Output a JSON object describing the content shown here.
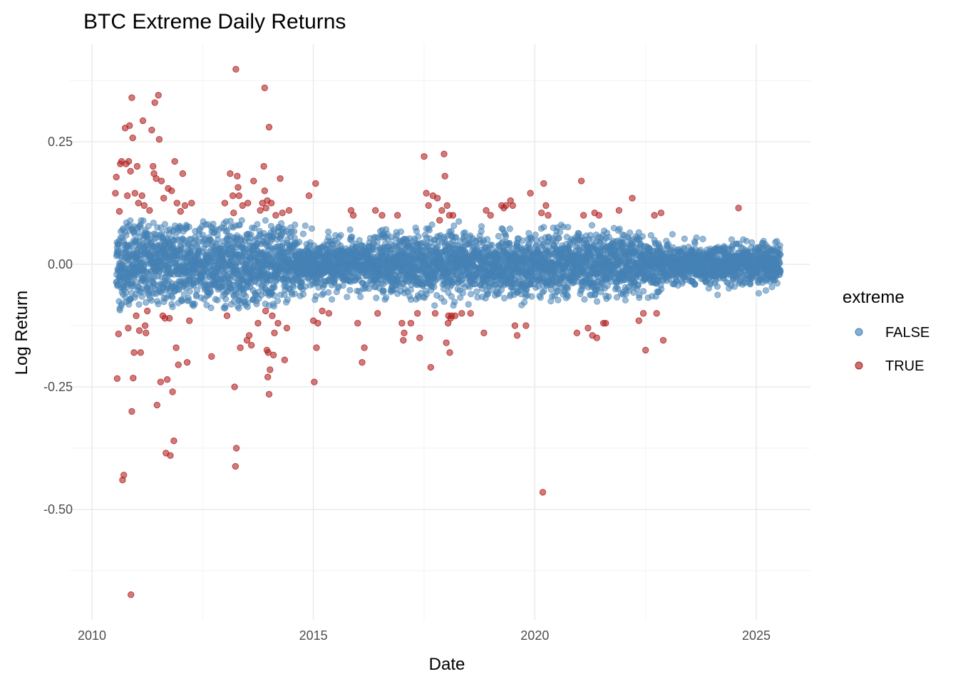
{
  "chart_data": {
    "type": "scatter",
    "title": "BTC Extreme Daily Returns",
    "xlabel": "Date",
    "ylabel": "Log Return",
    "xlim": [
      2010.0,
      2026.25
    ],
    "ylim": [
      -0.72,
      0.43
    ],
    "x_ticks": [
      2010,
      2015,
      2020,
      2025
    ],
    "x_tick_labels": [
      "2010",
      "2015",
      "2020",
      "2025"
    ],
    "y_ticks": [
      -0.5,
      -0.25,
      0.0,
      0.25
    ],
    "y_tick_labels": [
      "-0.50",
      "-0.25",
      "0.00",
      "0.25"
    ],
    "grid": true,
    "legend": {
      "title": "extreme",
      "position": "right"
    },
    "background_points": {
      "description_series": "FALSE",
      "x_range": [
        2010.55,
        2025.55
      ],
      "note": "dense band of non-extreme daily returns"
    },
    "series": [
      {
        "name": "FALSE",
        "color": "#4682B4",
        "envelope": [
          [
            2010.6,
            0.095
          ],
          [
            2011.0,
            0.09
          ],
          [
            2011.5,
            0.095
          ],
          [
            2012.0,
            0.085
          ],
          [
            2012.5,
            0.09
          ],
          [
            2013.0,
            0.09
          ],
          [
            2013.5,
            0.095
          ],
          [
            2014.0,
            0.09
          ],
          [
            2014.5,
            0.08
          ],
          [
            2015.0,
            0.085
          ],
          [
            2015.5,
            0.075
          ],
          [
            2016.0,
            0.07
          ],
          [
            2016.5,
            0.075
          ],
          [
            2017.0,
            0.075
          ],
          [
            2017.5,
            0.08
          ],
          [
            2018.0,
            0.095
          ],
          [
            2018.5,
            0.085
          ],
          [
            2019.0,
            0.08
          ],
          [
            2019.5,
            0.08
          ],
          [
            2020.0,
            0.09
          ],
          [
            2020.5,
            0.08
          ],
          [
            2021.0,
            0.095
          ],
          [
            2021.5,
            0.08
          ],
          [
            2022.0,
            0.075
          ],
          [
            2022.5,
            0.07
          ],
          [
            2023.0,
            0.065
          ],
          [
            2023.5,
            0.065
          ],
          [
            2024.0,
            0.08
          ],
          [
            2024.5,
            0.085
          ],
          [
            2025.0,
            0.09
          ],
          [
            2025.5,
            0.045
          ]
        ]
      },
      {
        "name": "TRUE",
        "color": "#B22222",
        "points": [
          [
            2010.53,
            0.145
          ],
          [
            2010.55,
            0.178
          ],
          [
            2010.57,
            -0.233
          ],
          [
            2010.6,
            -0.142
          ],
          [
            2010.62,
            0.108
          ],
          [
            2010.64,
            0.205
          ],
          [
            2010.67,
            0.21
          ],
          [
            2010.69,
            -0.44
          ],
          [
            2010.72,
            -0.43
          ],
          [
            2010.75,
            0.278
          ],
          [
            2010.77,
            0.205
          ],
          [
            2010.8,
            0.14
          ],
          [
            2010.82,
            -0.13
          ],
          [
            2010.83,
            0.21
          ],
          [
            2010.85,
            0.283
          ],
          [
            2010.87,
            0.19
          ],
          [
            2010.88,
            -0.674
          ],
          [
            2010.9,
            0.34
          ],
          [
            2010.9,
            -0.3
          ],
          [
            2010.92,
            0.258
          ],
          [
            2010.93,
            -0.232
          ],
          [
            2010.95,
            -0.18
          ],
          [
            2010.97,
            0.145
          ],
          [
            2011.0,
            -0.105
          ],
          [
            2011.02,
            0.2
          ],
          [
            2011.05,
            0.125
          ],
          [
            2011.07,
            -0.135
          ],
          [
            2011.1,
            -0.18
          ],
          [
            2011.13,
            0.14
          ],
          [
            2011.15,
            0.293
          ],
          [
            2011.18,
            0.12
          ],
          [
            2011.2,
            -0.125
          ],
          [
            2011.22,
            -0.14
          ],
          [
            2011.25,
            -0.095
          ],
          [
            2011.3,
            0.11
          ],
          [
            2011.35,
            0.274
          ],
          [
            2011.38,
            0.2
          ],
          [
            2011.4,
            0.185
          ],
          [
            2011.42,
            0.33
          ],
          [
            2011.45,
            0.175
          ],
          [
            2011.47,
            -0.287
          ],
          [
            2011.5,
            0.345
          ],
          [
            2011.52,
            0.255
          ],
          [
            2011.55,
            -0.24
          ],
          [
            2011.57,
            0.17
          ],
          [
            2011.6,
            -0.105
          ],
          [
            2011.62,
            0.135
          ],
          [
            2011.65,
            -0.11
          ],
          [
            2011.67,
            -0.385
          ],
          [
            2011.7,
            -0.235
          ],
          [
            2011.72,
            0.155
          ],
          [
            2011.75,
            -0.11
          ],
          [
            2011.77,
            -0.39
          ],
          [
            2011.8,
            0.15
          ],
          [
            2011.82,
            -0.26
          ],
          [
            2011.85,
            -0.36
          ],
          [
            2011.87,
            0.21
          ],
          [
            2011.9,
            -0.17
          ],
          [
            2011.92,
            0.125
          ],
          [
            2011.95,
            -0.205
          ],
          [
            2012.0,
            0.108
          ],
          [
            2012.05,
            0.185
          ],
          [
            2012.1,
            0.12
          ],
          [
            2012.15,
            -0.2
          ],
          [
            2012.2,
            -0.115
          ],
          [
            2012.25,
            0.125
          ],
          [
            2012.7,
            -0.188
          ],
          [
            2013.0,
            0.125
          ],
          [
            2013.05,
            -0.105
          ],
          [
            2013.12,
            0.185
          ],
          [
            2013.18,
            0.14
          ],
          [
            2013.2,
            0.105
          ],
          [
            2013.22,
            -0.25
          ],
          [
            2013.24,
            -0.412
          ],
          [
            2013.25,
            0.398
          ],
          [
            2013.26,
            -0.375
          ],
          [
            2013.28,
            0.18
          ],
          [
            2013.3,
            0.157
          ],
          [
            2013.32,
            0.14
          ],
          [
            2013.35,
            -0.17
          ],
          [
            2013.4,
            0.12
          ],
          [
            2013.5,
            -0.155
          ],
          [
            2013.52,
            0.125
          ],
          [
            2013.55,
            -0.145
          ],
          [
            2013.6,
            -0.165
          ],
          [
            2013.65,
            0.17
          ],
          [
            2013.75,
            -0.12
          ],
          [
            2013.8,
            0.11
          ],
          [
            2013.85,
            0.125
          ],
          [
            2013.88,
            0.2
          ],
          [
            2013.9,
            0.36
          ],
          [
            2013.9,
            0.15
          ],
          [
            2013.92,
            -0.095
          ],
          [
            2013.93,
            0.115
          ],
          [
            2013.95,
            -0.175
          ],
          [
            2013.96,
            0.13
          ],
          [
            2013.97,
            -0.23
          ],
          [
            2013.98,
            -0.18
          ],
          [
            2014.0,
            0.28
          ],
          [
            2014.0,
            -0.265
          ],
          [
            2014.02,
            -0.215
          ],
          [
            2014.05,
            0.125
          ],
          [
            2014.07,
            -0.105
          ],
          [
            2014.1,
            -0.185
          ],
          [
            2014.12,
            -0.14
          ],
          [
            2014.15,
            0.1
          ],
          [
            2014.2,
            -0.12
          ],
          [
            2014.25,
            0.175
          ],
          [
            2014.3,
            0.105
          ],
          [
            2014.35,
            -0.195
          ],
          [
            2014.4,
            -0.13
          ],
          [
            2014.45,
            0.11
          ],
          [
            2014.9,
            0.14
          ],
          [
            2015.0,
            -0.115
          ],
          [
            2015.02,
            -0.24
          ],
          [
            2015.05,
            0.165
          ],
          [
            2015.07,
            -0.17
          ],
          [
            2015.1,
            -0.12
          ],
          [
            2015.2,
            -0.095
          ],
          [
            2015.35,
            -0.1
          ],
          [
            2015.85,
            0.11
          ],
          [
            2015.9,
            0.1
          ],
          [
            2016.0,
            -0.12
          ],
          [
            2016.1,
            -0.2
          ],
          [
            2016.15,
            -0.17
          ],
          [
            2016.4,
            0.11
          ],
          [
            2016.45,
            -0.1
          ],
          [
            2016.55,
            0.1
          ],
          [
            2016.9,
            0.1
          ],
          [
            2017.0,
            -0.12
          ],
          [
            2017.03,
            -0.155
          ],
          [
            2017.05,
            -0.14
          ],
          [
            2017.2,
            -0.12
          ],
          [
            2017.35,
            -0.1
          ],
          [
            2017.4,
            -0.15
          ],
          [
            2017.5,
            0.22
          ],
          [
            2017.55,
            0.145
          ],
          [
            2017.6,
            0.12
          ],
          [
            2017.65,
            -0.21
          ],
          [
            2017.7,
            0.14
          ],
          [
            2017.75,
            -0.1
          ],
          [
            2017.8,
            0.135
          ],
          [
            2017.85,
            0.09
          ],
          [
            2017.9,
            0.11
          ],
          [
            2017.95,
            0.225
          ],
          [
            2017.97,
            0.18
          ],
          [
            2018.0,
            -0.16
          ],
          [
            2018.02,
            0.12
          ],
          [
            2018.04,
            -0.12
          ],
          [
            2018.05,
            -0.105
          ],
          [
            2018.07,
            0.1
          ],
          [
            2018.08,
            -0.18
          ],
          [
            2018.1,
            -0.11
          ],
          [
            2018.12,
            -0.105
          ],
          [
            2018.15,
            0.1
          ],
          [
            2018.2,
            -0.105
          ],
          [
            2018.35,
            -0.1
          ],
          [
            2018.55,
            -0.1
          ],
          [
            2018.85,
            -0.14
          ],
          [
            2018.9,
            0.11
          ],
          [
            2019.0,
            0.1
          ],
          [
            2019.25,
            0.12
          ],
          [
            2019.3,
            0.115
          ],
          [
            2019.35,
            0.12
          ],
          [
            2019.45,
            0.13
          ],
          [
            2019.5,
            0.12
          ],
          [
            2019.55,
            -0.125
          ],
          [
            2019.6,
            -0.145
          ],
          [
            2019.8,
            -0.125
          ],
          [
            2019.9,
            0.145
          ],
          [
            2020.15,
            0.105
          ],
          [
            2020.18,
            -0.465
          ],
          [
            2020.2,
            0.165
          ],
          [
            2020.25,
            0.12
          ],
          [
            2020.3,
            0.1
          ],
          [
            2020.95,
            -0.14
          ],
          [
            2021.05,
            0.17
          ],
          [
            2021.1,
            0.1
          ],
          [
            2021.2,
            -0.13
          ],
          [
            2021.3,
            -0.145
          ],
          [
            2021.35,
            0.105
          ],
          [
            2021.4,
            -0.15
          ],
          [
            2021.45,
            0.1
          ],
          [
            2021.55,
            -0.12
          ],
          [
            2021.6,
            -0.12
          ],
          [
            2021.9,
            0.11
          ],
          [
            2022.2,
            0.135
          ],
          [
            2022.35,
            -0.115
          ],
          [
            2022.45,
            -0.1
          ],
          [
            2022.5,
            -0.175
          ],
          [
            2022.7,
            0.1
          ],
          [
            2022.75,
            -0.1
          ],
          [
            2022.85,
            0.105
          ],
          [
            2022.9,
            -0.155
          ],
          [
            2024.6,
            0.115
          ]
        ]
      }
    ]
  }
}
